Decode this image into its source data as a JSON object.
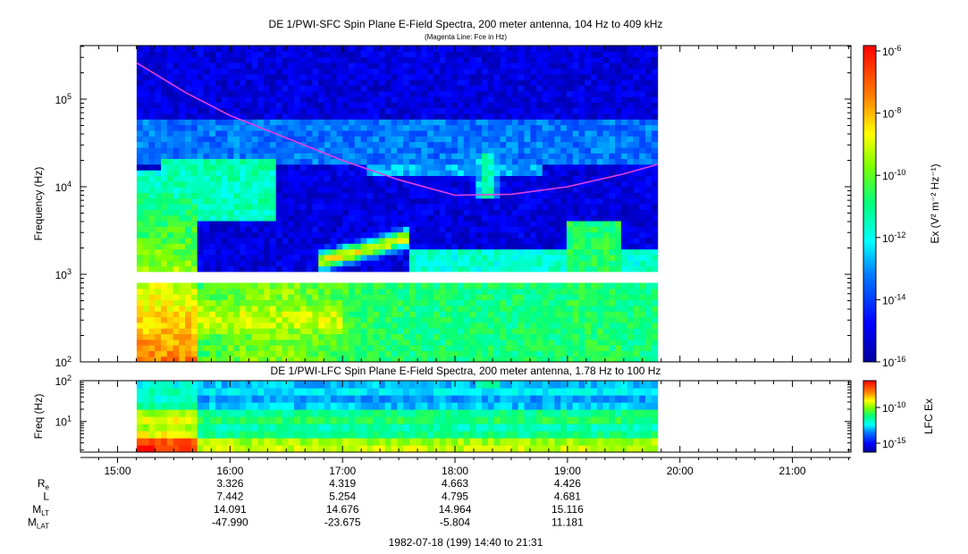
{
  "top_title": "DE 1/PWI-SFC  Spin Plane E-Field Spectra, 200 meter antenna, 104 Hz to 409 kHz",
  "top_subtitle": "(Magenta Line: Fce in Hz)",
  "bottom_title": "DE 1/PWI-LFC  Spin Plane E-Field Spectra, 200 meter antenna, 1.78 Hz to 100 Hz",
  "date_range": "1982-07-18 (199) 14:40 to 21:31",
  "colors": {
    "fce_line": "#e040e0",
    "frame": "#000000",
    "background": "#0000a0"
  },
  "chart_data": [
    {
      "type": "heatmap",
      "name": "SFC spectrogram",
      "ylabel": "Frequency (Hz)",
      "yscale": "log",
      "ylim": [
        100,
        409000
      ],
      "yticks": [
        {
          "v": 100,
          "label": "10",
          "exp": "2"
        },
        {
          "v": 1000,
          "label": "10",
          "exp": "3"
        },
        {
          "v": 10000,
          "label": "10",
          "exp": "4"
        },
        {
          "v": 100000,
          "label": "10",
          "exp": "5"
        }
      ],
      "xlim_hours": [
        14.67,
        21.52
      ],
      "data_start_hours": 15.17,
      "data_end_hours": 19.8,
      "gap_hz": [
        800,
        1000
      ],
      "colorbar": {
        "label": "Ex (V² m⁻² Hz⁻¹)",
        "scale": "log",
        "ticks": [
          {
            "v": "-6",
            "label": "10"
          },
          {
            "v": "-8",
            "label": "10"
          },
          {
            "v": "-10",
            "label": "10"
          },
          {
            "v": "-12",
            "label": "10"
          },
          {
            "v": "-14",
            "label": "10"
          },
          {
            "v": "-16",
            "label": "10"
          }
        ]
      },
      "features": [
        {
          "name": "low-frequency enhancement",
          "t": [
            15.2,
            17.6
          ],
          "f_hz": [
            100,
            2000
          ],
          "level": "high"
        },
        {
          "name": "rising emission band",
          "t": [
            16.8,
            17.6
          ],
          "f_hz": [
            1500,
            4000
          ],
          "level": "high"
        },
        {
          "name": "burst near 18:15",
          "t": [
            18.1,
            18.5
          ],
          "f_hz": [
            8000,
            30000
          ],
          "level": "medium"
        }
      ],
      "fce_line": {
        "name": "Fce",
        "t_hours": [
          15.17,
          15.6,
          16.0,
          16.5,
          17.0,
          17.5,
          18.0,
          18.5,
          19.0,
          19.5,
          19.8
        ],
        "f_hz": [
          260000,
          120000,
          65000,
          36000,
          20000,
          12000,
          8000,
          8200,
          10000,
          14000,
          18000
        ]
      }
    },
    {
      "type": "heatmap",
      "name": "LFC spectrogram",
      "ylabel": "Freq (Hz)",
      "yscale": "log",
      "ylim": [
        1.78,
        100
      ],
      "yticks": [
        {
          "v": 10,
          "label": "10",
          "exp": "1"
        },
        {
          "v": 100,
          "label": "10",
          "exp": "2"
        }
      ],
      "colorbar": {
        "label": "LFC Ex",
        "scale": "log",
        "ticks": [
          {
            "v": "-10",
            "label": "10"
          },
          {
            "v": "-15",
            "label": "10"
          }
        ]
      }
    }
  ],
  "x_axis": {
    "ticks": [
      {
        "h": 15,
        "label": "15:00"
      },
      {
        "h": 16,
        "label": "16:00"
      },
      {
        "h": 17,
        "label": "17:00"
      },
      {
        "h": 18,
        "label": "18:00"
      },
      {
        "h": 19,
        "label": "19:00"
      },
      {
        "h": 20,
        "label": "20:00"
      },
      {
        "h": 21,
        "label": "21:00"
      }
    ]
  },
  "ephemeris": {
    "rows": [
      {
        "label": "R",
        "sub": "e",
        "values": [
          "3.326",
          "4.319",
          "4.663",
          "4.426"
        ]
      },
      {
        "label": "L",
        "sub": "",
        "values": [
          "7.442",
          "5.254",
          "4.795",
          "4.681"
        ]
      },
      {
        "label": "M",
        "sub": "LT",
        "values": [
          "14.091",
          "14.676",
          "14.964",
          "15.116"
        ]
      },
      {
        "label": "M",
        "sub": "LAT",
        "values": [
          "-47.990",
          "-23.675",
          "-5.804",
          "11.181"
        ]
      }
    ]
  }
}
